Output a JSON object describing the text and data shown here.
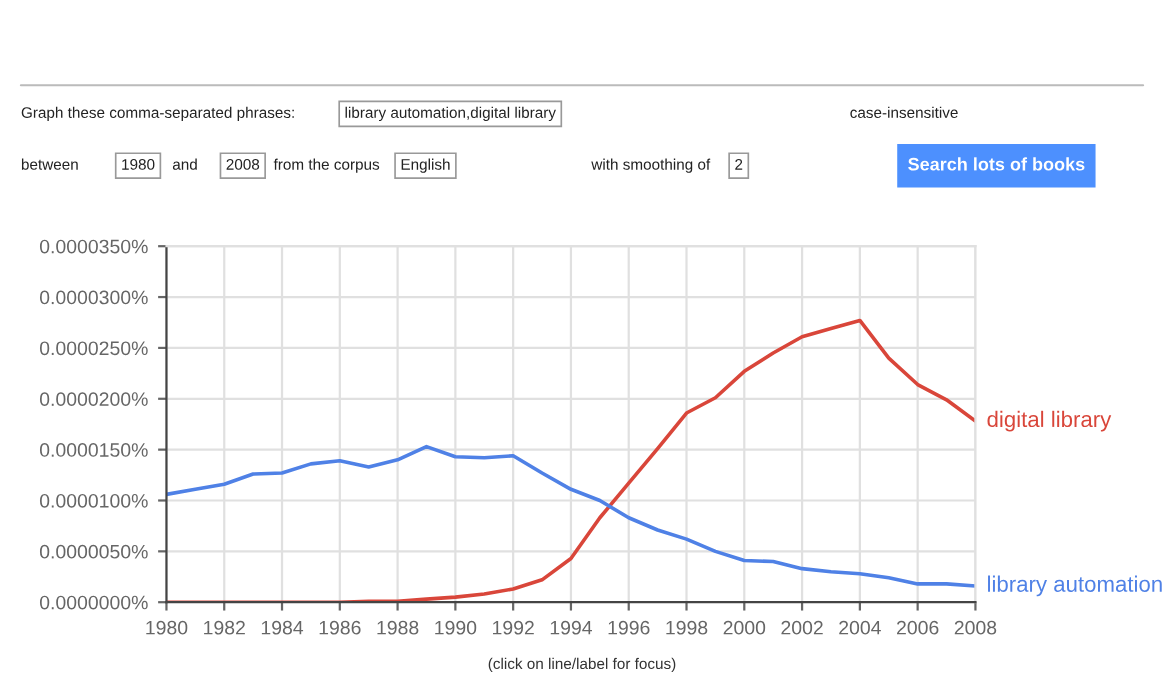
{
  "chart_data": {
    "type": "line",
    "x": [
      1980,
      1981,
      1982,
      1983,
      1984,
      1985,
      1986,
      1987,
      1988,
      1989,
      1990,
      1991,
      1992,
      1993,
      1994,
      1995,
      1996,
      1997,
      1998,
      1999,
      2000,
      2001,
      2002,
      2003,
      2004,
      2005,
      2006,
      2007,
      2008
    ],
    "series": [
      {
        "name": "digital library",
        "color": "#d9463a",
        "values": [
          0,
          0,
          0,
          0,
          0,
          0,
          0,
          1e-07,
          1e-07,
          3e-07,
          5e-07,
          8e-07,
          1.3e-06,
          2.2e-06,
          4.3e-06,
          8.3e-06,
          1.17e-05,
          1.51e-05,
          1.86e-05,
          2.01e-05,
          2.27e-05,
          2.45e-05,
          2.61e-05,
          2.69e-05,
          2.77e-05,
          2.4e-05,
          2.14e-05,
          1.99e-05,
          1.78e-05
        ]
      },
      {
        "name": "library automation",
        "color": "#4f81e6",
        "values": [
          1.06e-05,
          1.11e-05,
          1.16e-05,
          1.26e-05,
          1.27e-05,
          1.36e-05,
          1.39e-05,
          1.33e-05,
          1.4e-05,
          1.53e-05,
          1.43e-05,
          1.42e-05,
          1.44e-05,
          1.27e-05,
          1.11e-05,
          1e-05,
          8.3e-06,
          7.1e-06,
          6.2e-06,
          5e-06,
          4.1e-06,
          4e-06,
          3.3e-06,
          3e-06,
          2.8e-06,
          2.4e-06,
          1.8e-06,
          1.8e-06,
          1.6e-06
        ]
      }
    ],
    "xlim": [
      1980,
      2008
    ],
    "xticks": [
      1980,
      1982,
      1984,
      1986,
      1988,
      1990,
      1992,
      1994,
      1996,
      1998,
      2000,
      2002,
      2004,
      2006,
      2008
    ],
    "ylim": [
      0,
      3.5e-05
    ],
    "yticks": [
      {
        "value": 0,
        "label": "0.0000000%"
      },
      {
        "value": 5e-06,
        "label": "0.0000050%"
      },
      {
        "value": 1e-05,
        "label": "0.0000100%"
      },
      {
        "value": 1.5e-05,
        "label": "0.0000150%"
      },
      {
        "value": 2e-05,
        "label": "0.0000200%"
      },
      {
        "value": 2.5e-05,
        "label": "0.0000250%"
      },
      {
        "value": 3e-05,
        "label": "0.0000300%"
      },
      {
        "value": 3.5e-05,
        "label": "0.0000350%"
      }
    ],
    "grid": true,
    "legend": false,
    "marker": "none",
    "line_style": "solid",
    "annotations": [
      "Graph these comma-separated phrases:",
      "library automation,digital library",
      "case-insensitive",
      "between",
      "1980",
      "and",
      "2008",
      "from the corpus",
      "English",
      "with smoothing of",
      "2",
      "Search lots of books",
      "(click on line/label for focus)"
    ]
  }
}
